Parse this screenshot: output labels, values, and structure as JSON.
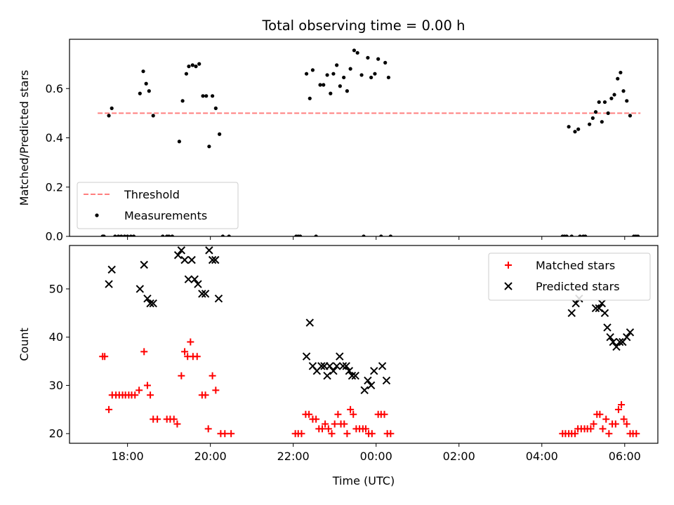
{
  "chart_data": {
    "type": "scatter",
    "title": "Total observing time = 0.00 h",
    "xlabel": "Time (UTC)",
    "x_ticks": [
      "18:00",
      "20:00",
      "22:00",
      "00:00",
      "02:00",
      "04:00",
      "06:00"
    ],
    "x_range_hours": [
      16.6,
      30.8
    ],
    "panels": [
      {
        "ylabel": "Matched/Predicted stars",
        "ylim": [
          0,
          0.8
        ],
        "yticks": [
          "0.0",
          "0.2",
          "0.4",
          "0.6"
        ],
        "yticks_values": [
          0,
          0.2,
          0.4,
          0.6
        ],
        "legend_position": "lower-left",
        "threshold": {
          "name": "Threshold",
          "value": 0.5,
          "x_start": 17.28,
          "x_end": 30.38,
          "color": "#ff7f7f"
        },
        "series": [
          {
            "name": "Measurements",
            "marker": "dot",
            "color": "#000000",
            "points": [
              [
                17.4,
                0
              ],
              [
                17.43,
                0
              ],
              [
                17.55,
                0.49
              ],
              [
                17.62,
                0.52
              ],
              [
                17.7,
                0
              ],
              [
                17.78,
                0
              ],
              [
                17.85,
                0
              ],
              [
                17.93,
                0
              ],
              [
                18.0,
                0
              ],
              [
                18.08,
                0
              ],
              [
                18.15,
                0
              ],
              [
                18.3,
                0.58
              ],
              [
                18.38,
                0.67
              ],
              [
                18.45,
                0.62
              ],
              [
                18.52,
                0.59
              ],
              [
                18.62,
                0.49
              ],
              [
                18.85,
                0
              ],
              [
                18.95,
                0
              ],
              [
                19.0,
                0
              ],
              [
                19.08,
                0
              ],
              [
                19.25,
                0.385
              ],
              [
                19.33,
                0.55
              ],
              [
                19.42,
                0.66
              ],
              [
                19.48,
                0.69
              ],
              [
                19.57,
                0.695
              ],
              [
                19.65,
                0.69
              ],
              [
                19.73,
                0.7
              ],
              [
                19.82,
                0.57
              ],
              [
                19.9,
                0.57
              ],
              [
                19.97,
                0.365
              ],
              [
                20.05,
                0.57
              ],
              [
                20.13,
                0.52
              ],
              [
                20.22,
                0.415
              ],
              [
                20.3,
                0
              ],
              [
                20.45,
                0
              ],
              [
                22.07,
                0
              ],
              [
                22.12,
                0
              ],
              [
                22.17,
                0
              ],
              [
                22.32,
                0.66
              ],
              [
                22.4,
                0.56
              ],
              [
                22.47,
                0.675
              ],
              [
                22.55,
                0
              ],
              [
                22.65,
                0.615
              ],
              [
                22.73,
                0.615
              ],
              [
                22.82,
                0.655
              ],
              [
                22.9,
                0.58
              ],
              [
                22.97,
                0.66
              ],
              [
                23.05,
                0.695
              ],
              [
                23.13,
                0.61
              ],
              [
                23.22,
                0.645
              ],
              [
                23.3,
                0.59
              ],
              [
                23.38,
                0.68
              ],
              [
                23.47,
                0.755
              ],
              [
                23.55,
                0.745
              ],
              [
                23.65,
                0.655
              ],
              [
                23.7,
                0
              ],
              [
                23.8,
                0.725
              ],
              [
                23.88,
                0.645
              ],
              [
                23.97,
                0.66
              ],
              [
                24.05,
                0.72
              ],
              [
                24.12,
                0
              ],
              [
                24.22,
                0.705
              ],
              [
                24.3,
                0.645
              ],
              [
                24.35,
                0
              ],
              [
                28.5,
                0
              ],
              [
                28.55,
                0
              ],
              [
                28.6,
                0
              ],
              [
                28.65,
                0.445
              ],
              [
                28.72,
                0
              ],
              [
                28.8,
                0.425
              ],
              [
                28.88,
                0.435
              ],
              [
                28.92,
                0
              ],
              [
                29.0,
                0
              ],
              [
                29.05,
                0
              ],
              [
                29.15,
                0.455
              ],
              [
                29.23,
                0.48
              ],
              [
                29.3,
                0.505
              ],
              [
                29.38,
                0.545
              ],
              [
                29.45,
                0.465
              ],
              [
                29.52,
                0.545
              ],
              [
                29.6,
                0.5
              ],
              [
                29.68,
                0.56
              ],
              [
                29.75,
                0.575
              ],
              [
                29.83,
                0.64
              ],
              [
                29.9,
                0.665
              ],
              [
                29.97,
                0.59
              ],
              [
                30.05,
                0.55
              ],
              [
                30.13,
                0.49
              ],
              [
                30.22,
                0
              ],
              [
                30.27,
                0
              ],
              [
                30.32,
                0
              ]
            ]
          }
        ]
      },
      {
        "ylabel": "Count",
        "ylim": [
          18,
          59
        ],
        "yticks": [
          "20",
          "30",
          "40",
          "50"
        ],
        "yticks_values": [
          20,
          30,
          40,
          50
        ],
        "legend_position": "upper-right",
        "series": [
          {
            "name": "Matched stars",
            "marker": "plus",
            "color": "#ff0000",
            "points": [
              [
                17.4,
                36
              ],
              [
                17.45,
                36
              ],
              [
                17.55,
                25
              ],
              [
                17.63,
                28
              ],
              [
                17.72,
                28
              ],
              [
                17.8,
                28
              ],
              [
                17.88,
                28
              ],
              [
                17.95,
                28
              ],
              [
                18.03,
                28
              ],
              [
                18.1,
                28
              ],
              [
                18.18,
                28
              ],
              [
                18.28,
                29
              ],
              [
                18.4,
                37
              ],
              [
                18.48,
                30
              ],
              [
                18.55,
                28
              ],
              [
                18.62,
                23
              ],
              [
                18.72,
                23
              ],
              [
                18.95,
                23
              ],
              [
                19.03,
                23
              ],
              [
                19.12,
                23
              ],
              [
                19.2,
                22
              ],
              [
                19.3,
                32
              ],
              [
                19.38,
                37
              ],
              [
                19.45,
                36
              ],
              [
                19.52,
                39
              ],
              [
                19.58,
                36
              ],
              [
                19.68,
                36
              ],
              [
                19.8,
                28
              ],
              [
                19.88,
                28
              ],
              [
                19.95,
                21
              ],
              [
                20.05,
                32
              ],
              [
                20.13,
                29
              ],
              [
                20.25,
                20
              ],
              [
                20.35,
                20
              ],
              [
                20.5,
                20
              ],
              [
                22.05,
                20
              ],
              [
                22.12,
                20
              ],
              [
                22.2,
                20
              ],
              [
                22.3,
                24
              ],
              [
                22.38,
                24
              ],
              [
                22.47,
                23
              ],
              [
                22.55,
                23
              ],
              [
                22.62,
                21
              ],
              [
                22.7,
                21
              ],
              [
                22.77,
                22
              ],
              [
                22.85,
                21
              ],
              [
                22.93,
                20
              ],
              [
                23.0,
                22
              ],
              [
                23.08,
                24
              ],
              [
                23.15,
                22
              ],
              [
                23.23,
                22
              ],
              [
                23.3,
                20
              ],
              [
                23.38,
                25
              ],
              [
                23.45,
                24
              ],
              [
                23.52,
                21
              ],
              [
                23.6,
                21
              ],
              [
                23.68,
                21
              ],
              [
                23.75,
                21
              ],
              [
                23.82,
                20
              ],
              [
                23.9,
                20
              ],
              [
                24.05,
                24
              ],
              [
                24.12,
                24
              ],
              [
                24.2,
                24
              ],
              [
                24.27,
                20
              ],
              [
                24.35,
                20
              ],
              [
                28.5,
                20
              ],
              [
                28.57,
                20
              ],
              [
                28.65,
                20
              ],
              [
                28.72,
                20
              ],
              [
                28.8,
                20
              ],
              [
                28.87,
                21
              ],
              [
                28.95,
                21
              ],
              [
                29.03,
                21
              ],
              [
                29.1,
                21
              ],
              [
                29.18,
                21
              ],
              [
                29.25,
                22
              ],
              [
                29.33,
                24
              ],
              [
                29.4,
                24
              ],
              [
                29.47,
                21
              ],
              [
                29.55,
                23
              ],
              [
                29.62,
                20
              ],
              [
                29.7,
                22
              ],
              [
                29.78,
                22
              ],
              [
                29.85,
                25
              ],
              [
                29.92,
                26
              ],
              [
                29.98,
                23
              ],
              [
                30.05,
                22
              ],
              [
                30.13,
                20
              ],
              [
                30.2,
                20
              ],
              [
                30.28,
                20
              ]
            ]
          },
          {
            "name": "Predicted stars",
            "marker": "x",
            "color": "#000000",
            "points": [
              [
                17.55,
                51
              ],
              [
                17.62,
                54
              ],
              [
                18.3,
                50
              ],
              [
                18.4,
                55
              ],
              [
                18.48,
                48
              ],
              [
                18.55,
                47
              ],
              [
                18.62,
                47
              ],
              [
                19.22,
                57
              ],
              [
                19.3,
                58
              ],
              [
                19.38,
                56
              ],
              [
                19.47,
                52
              ],
              [
                19.55,
                56
              ],
              [
                19.62,
                52
              ],
              [
                19.7,
                51
              ],
              [
                19.8,
                49
              ],
              [
                19.88,
                49
              ],
              [
                19.97,
                58
              ],
              [
                20.05,
                56
              ],
              [
                20.12,
                56
              ],
              [
                20.2,
                48
              ],
              [
                22.32,
                36
              ],
              [
                22.4,
                43
              ],
              [
                22.47,
                34
              ],
              [
                22.57,
                33
              ],
              [
                22.68,
                34
              ],
              [
                22.75,
                34
              ],
              [
                22.82,
                32
              ],
              [
                22.88,
                34
              ],
              [
                22.97,
                33
              ],
              [
                23.05,
                34
              ],
              [
                23.12,
                36
              ],
              [
                23.2,
                34
              ],
              [
                23.28,
                34
              ],
              [
                23.35,
                33
              ],
              [
                23.42,
                32
              ],
              [
                23.5,
                32
              ],
              [
                23.72,
                29
              ],
              [
                23.8,
                31
              ],
              [
                23.88,
                30
              ],
              [
                23.95,
                33
              ],
              [
                24.15,
                34
              ],
              [
                24.25,
                31
              ],
              [
                28.72,
                45
              ],
              [
                28.82,
                47
              ],
              [
                28.9,
                48
              ],
              [
                29.3,
                46
              ],
              [
                29.38,
                46
              ],
              [
                29.45,
                47
              ],
              [
                29.52,
                45
              ],
              [
                29.58,
                42
              ],
              [
                29.65,
                40
              ],
              [
                29.72,
                39
              ],
              [
                29.8,
                38
              ],
              [
                29.88,
                39
              ],
              [
                29.95,
                39
              ],
              [
                30.05,
                40
              ],
              [
                30.13,
                41
              ]
            ]
          }
        ]
      }
    ]
  }
}
